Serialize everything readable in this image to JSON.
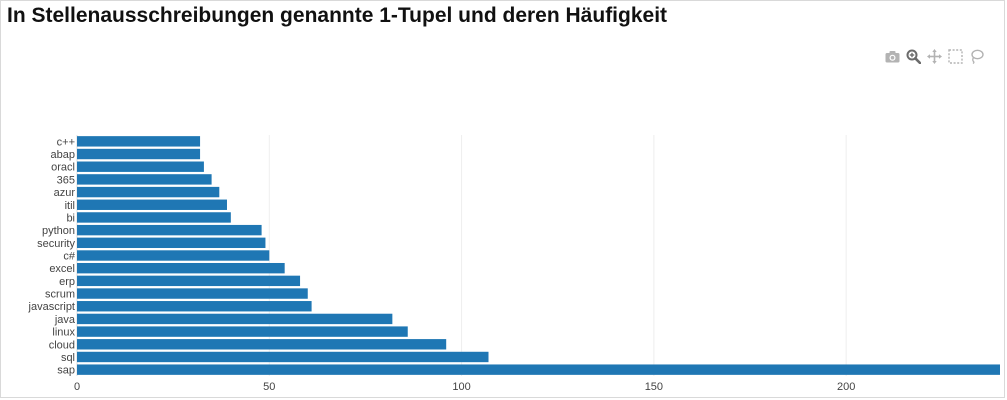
{
  "title": "In Stellenausschreibungen genannte 1-Tupel und deren Häufigkeit",
  "modebar": {
    "items": [
      {
        "name": "camera-icon",
        "color": "#b3b3b3"
      },
      {
        "name": "zoom-icon",
        "color": "#6b6b6b"
      },
      {
        "name": "pan-icon",
        "color": "#b3b3b3"
      },
      {
        "name": "box-select-icon",
        "color": "#b3b3b3"
      },
      {
        "name": "lasso-select-icon",
        "color": "#b3b3b3"
      }
    ]
  },
  "chart_data": {
    "type": "bar",
    "orientation": "horizontal",
    "categories": [
      "c++",
      "abap",
      "oracl",
      "365",
      "azur",
      "itil",
      "bi",
      "python",
      "security",
      "c#",
      "excel",
      "erp",
      "scrum",
      "javascript",
      "java",
      "linux",
      "cloud",
      "sql",
      "sap"
    ],
    "values": [
      32,
      32,
      33,
      35,
      37,
      39,
      40,
      48,
      49,
      50,
      54,
      58,
      60,
      61,
      82,
      86,
      96,
      107,
      240
    ],
    "xlim": [
      0,
      240
    ],
    "xticks": [
      0,
      50,
      100,
      150,
      200
    ],
    "color": "#1f77b4",
    "grid": true,
    "xlabel": "",
    "ylabel": ""
  }
}
